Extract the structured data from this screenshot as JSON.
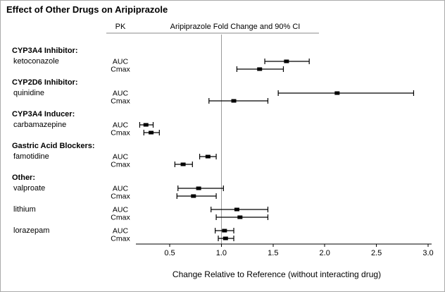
{
  "chart_data": {
    "type": "scatter",
    "subtype": "forest-plot-error-bars",
    "title": "Effect of Other Drugs on Aripiprazole",
    "column_header": "PK",
    "plot_header": "Aripiprazole Fold Change and 90% CI",
    "xlabel": "Change Relative to Reference (without interacting drug)",
    "x_ticks": [
      0.5,
      1.0,
      1.5,
      2.0,
      2.5,
      3.0
    ],
    "xlim": [
      0.15,
      3.02
    ],
    "reference_line": 1.0,
    "ci_level": "90% CI",
    "groups": [
      {
        "label": "CYP3A4 Inhibitor:",
        "drugs": [
          {
            "name": "ketoconazole",
            "rows": [
              {
                "measure": "AUC",
                "est": 1.63,
                "lo": 1.42,
                "hi": 1.85
              },
              {
                "measure": "Cmax",
                "est": 1.37,
                "lo": 1.15,
                "hi": 1.6
              }
            ]
          }
        ]
      },
      {
        "label": "CYP2D6 Inhibitor:",
        "drugs": [
          {
            "name": "quinidine",
            "rows": [
              {
                "measure": "AUC",
                "est": 2.12,
                "lo": 1.55,
                "hi": 2.86
              },
              {
                "measure": "Cmax",
                "est": 1.12,
                "lo": 0.88,
                "hi": 1.45
              }
            ]
          }
        ]
      },
      {
        "label": "CYP3A4 Inducer:",
        "drugs": [
          {
            "name": "carbamazepine",
            "rows": [
              {
                "measure": "AUC",
                "est": 0.27,
                "lo": 0.21,
                "hi": 0.34
              },
              {
                "measure": "Cmax",
                "est": 0.32,
                "lo": 0.25,
                "hi": 0.4
              }
            ]
          }
        ]
      },
      {
        "label": "Gastric Acid Blockers:",
        "drugs": [
          {
            "name": "famotidine",
            "rows": [
              {
                "measure": "AUC",
                "est": 0.87,
                "lo": 0.79,
                "hi": 0.95
              },
              {
                "measure": "Cmax",
                "est": 0.63,
                "lo": 0.55,
                "hi": 0.72
              }
            ]
          }
        ]
      },
      {
        "label": "Other:",
        "drugs": [
          {
            "name": "valproate",
            "rows": [
              {
                "measure": "AUC",
                "est": 0.78,
                "lo": 0.58,
                "hi": 1.02
              },
              {
                "measure": "Cmax",
                "est": 0.73,
                "lo": 0.57,
                "hi": 0.95
              }
            ]
          },
          {
            "name": "lithium",
            "rows": [
              {
                "measure": "AUC",
                "est": 1.15,
                "lo": 0.9,
                "hi": 1.45
              },
              {
                "measure": "Cmax",
                "est": 1.18,
                "lo": 0.95,
                "hi": 1.45
              }
            ]
          },
          {
            "name": "lorazepam",
            "rows": [
              {
                "measure": "AUC",
                "est": 1.03,
                "lo": 0.94,
                "hi": 1.12
              },
              {
                "measure": "Cmax",
                "est": 1.04,
                "lo": 0.97,
                "hi": 1.12
              }
            ]
          }
        ]
      }
    ]
  }
}
